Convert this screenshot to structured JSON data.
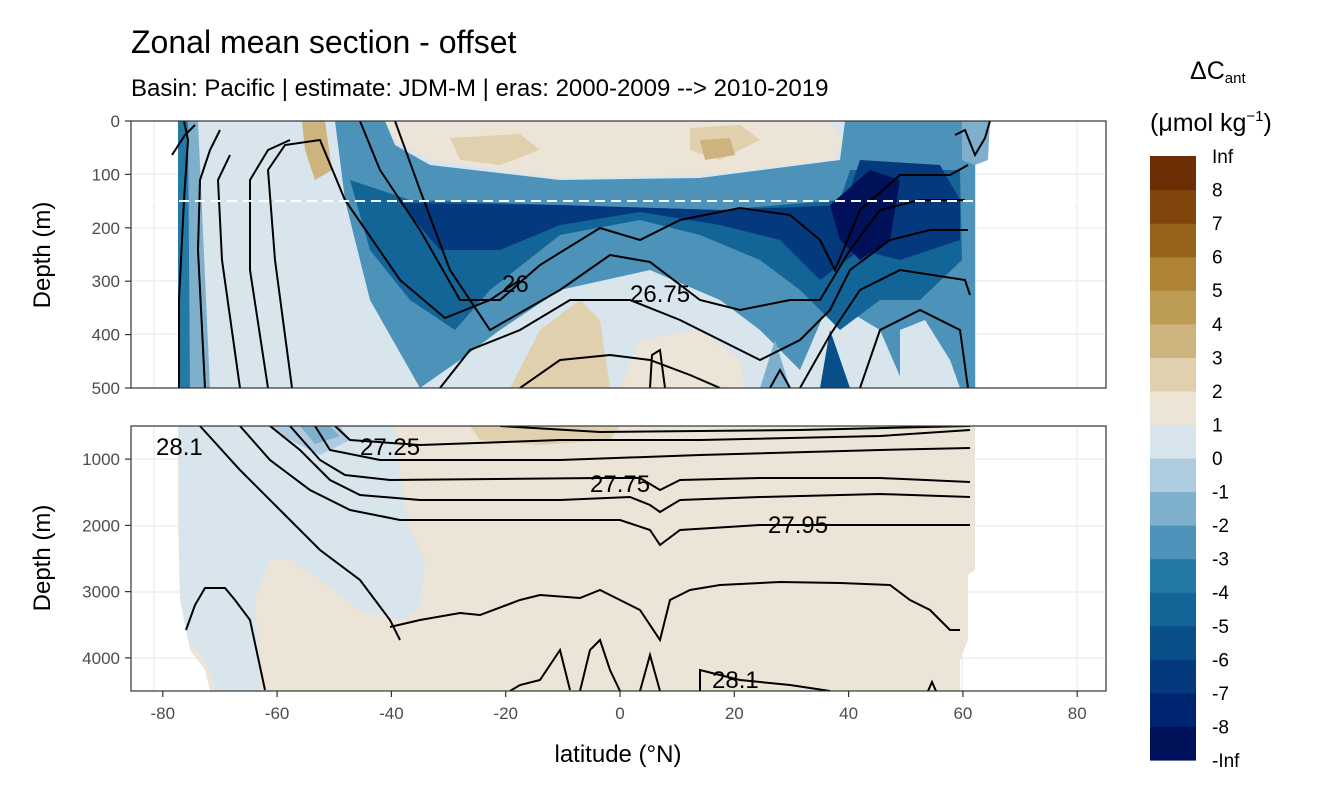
{
  "chart_data": {
    "type": "contour",
    "title": "Zonal mean section - offset",
    "subtitle": "Basin: Pacific | estimate: JDM-M | eras: 2000-2009 --> 2010-2019",
    "xlabel": "latitude (°N)",
    "xlim": [
      -85,
      85
    ],
    "x_ticks": [
      -80,
      -60,
      -40,
      -20,
      0,
      20,
      40,
      60,
      80
    ],
    "panels": [
      {
        "name": "upper",
        "ylabel": "Depth (m)",
        "ylim": [
          500,
          0
        ],
        "y_ticks": [
          0,
          100,
          200,
          300,
          400,
          500
        ],
        "reference_depth_dashed": 150,
        "contour_labels": [
          {
            "text": "26",
            "lat": -18,
            "depth": 305
          },
          {
            "text": "26.75",
            "lat": 8,
            "depth": 325
          }
        ]
      },
      {
        "name": "lower",
        "ylabel": "Depth (m)",
        "ylim": [
          4500,
          500
        ],
        "y_ticks": [
          1000,
          2000,
          3000,
          4000
        ],
        "contour_labels": [
          {
            "text": "28.1",
            "lat": -78,
            "depth": 830
          },
          {
            "text": "27.25",
            "lat": -40,
            "depth": 800
          },
          {
            "text": "27.75",
            "lat": 1,
            "depth": 1390
          },
          {
            "text": "27.95",
            "lat": 30,
            "depth": 2000
          },
          {
            "text": "28.1",
            "lat": 21,
            "depth": 4300
          }
        ]
      }
    ],
    "legend": {
      "title_main": "ΔC",
      "title_sub": "ant",
      "unit_main": "(μmol kg",
      "unit_sup": "−1",
      "unit_close": ")",
      "placement": "right",
      "bins": [
        "-Inf",
        "-8",
        "-7",
        "-6",
        "-5",
        "-4",
        "-3",
        "-2",
        "-1",
        "0",
        "1",
        "2",
        "3",
        "4",
        "5",
        "6",
        "7",
        "8",
        "Inf"
      ],
      "colors": [
        "#00115a",
        "#002570",
        "#04397d",
        "#084f8a",
        "#136497",
        "#2479a5",
        "#4d93b9",
        "#7eb0cd",
        "#aecbdf",
        "#d8e5ec",
        "#ece5d7",
        "#e0d0ad",
        "#cdb47e",
        "#bd9c54",
        "#ad8436",
        "#97631a",
        "#7f460b",
        "#6a2f05"
      ]
    }
  }
}
